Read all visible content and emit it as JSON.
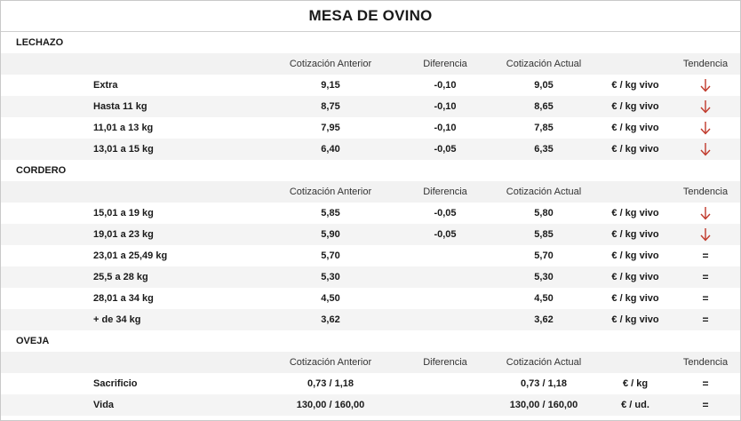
{
  "title": "MESA DE OVINO",
  "headers": {
    "anterior": "Cotización Anterior",
    "diferencia": "Diferencia",
    "actual": "Cotización Actual",
    "tendencia": "Tendencia"
  },
  "colors": {
    "down_arrow": "#c0392b"
  },
  "sections": [
    {
      "label": "LECHAZO",
      "rows": [
        {
          "name": "Extra",
          "anterior": "9,15",
          "diferencia": "-0,10",
          "actual": "9,05",
          "unit": "€ / kg vivo",
          "trend": "down"
        },
        {
          "name": "Hasta 11 kg",
          "anterior": "8,75",
          "diferencia": "-0,10",
          "actual": "8,65",
          "unit": "€ / kg vivo",
          "trend": "down"
        },
        {
          "name": "11,01 a 13 kg",
          "anterior": "7,95",
          "diferencia": "-0,10",
          "actual": "7,85",
          "unit": "€ / kg vivo",
          "trend": "down"
        },
        {
          "name": "13,01 a 15 kg",
          "anterior": "6,40",
          "diferencia": "-0,05",
          "actual": "6,35",
          "unit": "€ / kg vivo",
          "trend": "down"
        }
      ]
    },
    {
      "label": "CORDERO",
      "rows": [
        {
          "name": "15,01 a 19 kg",
          "anterior": "5,85",
          "diferencia": "-0,05",
          "actual": "5,80",
          "unit": "€ / kg vivo",
          "trend": "down"
        },
        {
          "name": "19,01 a 23 kg",
          "anterior": "5,90",
          "diferencia": "-0,05",
          "actual": "5,85",
          "unit": "€ / kg vivo",
          "trend": "down"
        },
        {
          "name": "23,01 a 25,49 kg",
          "anterior": "5,70",
          "diferencia": "",
          "actual": "5,70",
          "unit": "€ / kg vivo",
          "trend": "="
        },
        {
          "name": "25,5 a 28 kg",
          "anterior": "5,30",
          "diferencia": "",
          "actual": "5,30",
          "unit": "€ / kg vivo",
          "trend": "="
        },
        {
          "name": "28,01 a 34 kg",
          "anterior": "4,50",
          "diferencia": "",
          "actual": "4,50",
          "unit": "€ / kg vivo",
          "trend": "="
        },
        {
          "name": "+ de 34 kg",
          "anterior": "3,62",
          "diferencia": "",
          "actual": "3,62",
          "unit": "€ / kg vivo",
          "trend": "="
        }
      ]
    },
    {
      "label": "OVEJA",
      "rows": [
        {
          "name": "Sacrificio",
          "anterior": "0,73 / 1,18",
          "diferencia": "",
          "actual": "0,73 / 1,18",
          "unit": "€ / kg",
          "trend": "="
        },
        {
          "name": "Vida",
          "anterior": "130,00 / 160,00",
          "diferencia": "",
          "actual": "130,00 / 160,00",
          "unit": "€ / ud.",
          "trend": "="
        }
      ]
    }
  ]
}
